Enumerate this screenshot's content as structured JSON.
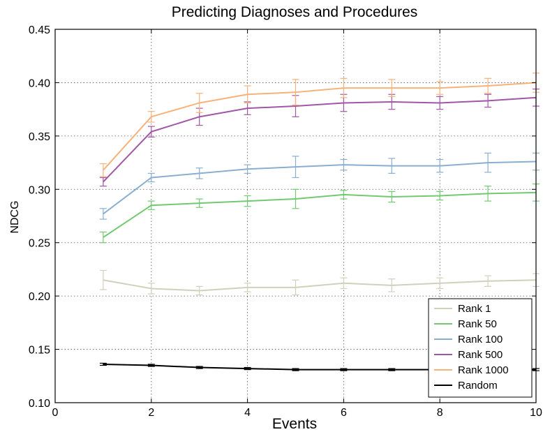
{
  "chart_data": {
    "type": "line",
    "title": "Predicting Diagnoses and Procedures",
    "xlabel": "Events",
    "ylabel": "NDCG",
    "xlim": [
      0,
      10
    ],
    "ylim": [
      0.1,
      0.45
    ],
    "xticks": [
      "0",
      "2",
      "4",
      "6",
      "8",
      "10"
    ],
    "yticks": [
      "0.10",
      "0.15",
      "0.20",
      "0.25",
      "0.30",
      "0.35",
      "0.40",
      "0.45"
    ],
    "grid": true,
    "legend_position": "lower-right",
    "error_bars": true,
    "x": [
      1,
      2,
      3,
      4,
      5,
      6,
      7,
      8,
      9,
      10
    ],
    "series": [
      {
        "name": "Rank 1",
        "color": "#d0d0bc",
        "values": [
          0.215,
          0.207,
          0.205,
          0.208,
          0.208,
          0.212,
          0.21,
          0.212,
          0.214,
          0.215
        ],
        "errors": [
          0.009,
          0.005,
          0.004,
          0.004,
          0.007,
          0.005,
          0.006,
          0.005,
          0.005,
          0.006
        ]
      },
      {
        "name": "Rank 50",
        "color": "#72c971",
        "values": [
          0.255,
          0.285,
          0.287,
          0.289,
          0.291,
          0.295,
          0.293,
          0.294,
          0.296,
          0.297
        ],
        "errors": [
          0.005,
          0.004,
          0.004,
          0.005,
          0.009,
          0.004,
          0.005,
          0.004,
          0.007,
          0.008
        ]
      },
      {
        "name": "Rank 100",
        "color": "#8aaed0",
        "values": [
          0.277,
          0.311,
          0.315,
          0.319,
          0.321,
          0.323,
          0.322,
          0.322,
          0.325,
          0.326
        ],
        "errors": [
          0.005,
          0.004,
          0.005,
          0.004,
          0.01,
          0.005,
          0.007,
          0.006,
          0.009,
          0.008
        ]
      },
      {
        "name": "Rank 500",
        "color": "#a156a6",
        "values": [
          0.307,
          0.354,
          0.368,
          0.376,
          0.378,
          0.381,
          0.382,
          0.381,
          0.383,
          0.386
        ],
        "errors": [
          0.004,
          0.005,
          0.008,
          0.006,
          0.01,
          0.008,
          0.007,
          0.006,
          0.006,
          0.008
        ]
      },
      {
        "name": "Rank 1000",
        "color": "#f6b27a",
        "values": [
          0.318,
          0.368,
          0.381,
          0.389,
          0.391,
          0.395,
          0.395,
          0.395,
          0.397,
          0.4
        ],
        "errors": [
          0.006,
          0.005,
          0.009,
          0.008,
          0.012,
          0.009,
          0.008,
          0.006,
          0.007,
          0.009
        ]
      },
      {
        "name": "Random",
        "color": "#000000",
        "values": [
          0.136,
          0.135,
          0.133,
          0.132,
          0.131,
          0.131,
          0.131,
          0.131,
          0.131,
          0.131
        ],
        "errors": [
          0.001,
          0.001,
          0.001,
          0.001,
          0.001,
          0.001,
          0.001,
          0.001,
          0.001,
          0.001
        ]
      }
    ]
  }
}
